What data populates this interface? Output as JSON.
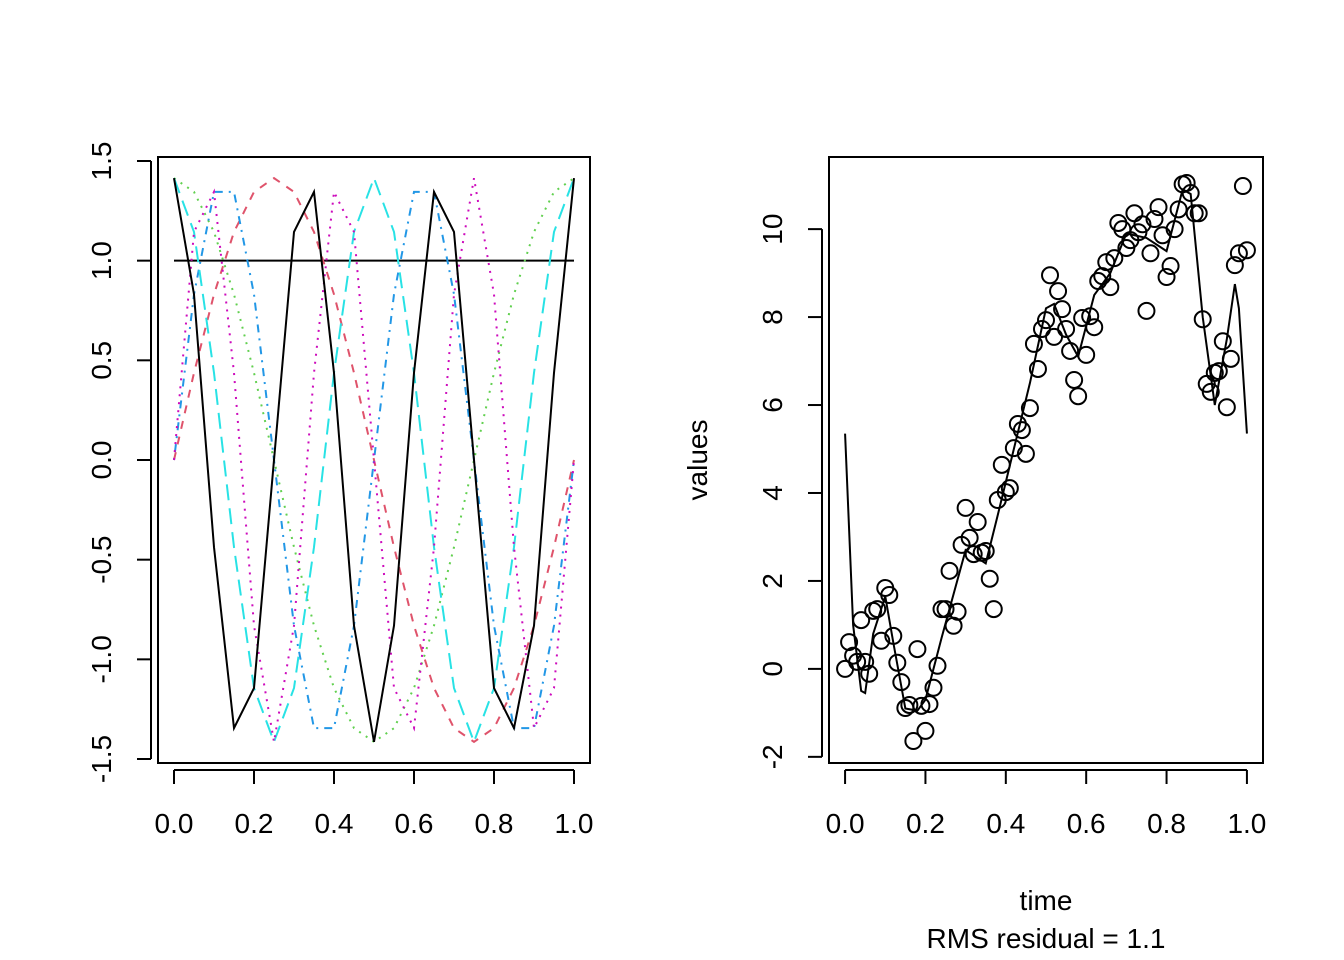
{
  "chart_data": [
    {
      "type": "line",
      "x": [
        0,
        0.05,
        0.1,
        0.15,
        0.2,
        0.25,
        0.3,
        0.35,
        0.4,
        0.45,
        0.5,
        0.55,
        0.6,
        0.65,
        0.7,
        0.75,
        0.8,
        0.85,
        0.9,
        0.95,
        1
      ],
      "series": [
        {
          "color": "#000000",
          "linestyle": "solid",
          "values": [
            1,
            1,
            1,
            1,
            1,
            1,
            1,
            1,
            1,
            1,
            1,
            1,
            1,
            1,
            1,
            1,
            1,
            1,
            1,
            1,
            1
          ]
        },
        {
          "color": "#DF536B",
          "linestyle": "dashed",
          "values": [
            0,
            0.437,
            0.831,
            1.144,
            1.345,
            1.414,
            1.345,
            1.144,
            0.831,
            0.437,
            0,
            -0.437,
            -0.831,
            -1.144,
            -1.345,
            -1.414,
            -1.345,
            -1.144,
            -0.831,
            -0.437,
            0
          ]
        },
        {
          "color": "#61D04F",
          "linestyle": "dotted",
          "values": [
            1.414,
            1.345,
            1.144,
            0.831,
            0.437,
            0,
            -0.437,
            -0.831,
            -1.144,
            -1.345,
            -1.414,
            -1.345,
            -1.144,
            -0.831,
            -0.437,
            0,
            0.437,
            0.831,
            1.144,
            1.345,
            1.414
          ]
        },
        {
          "color": "#2297E6",
          "linestyle": "dotdash",
          "values": [
            0,
            0.831,
            1.345,
            1.345,
            0.831,
            0,
            -0.831,
            -1.345,
            -1.345,
            -0.831,
            0,
            0.831,
            1.345,
            1.345,
            0.831,
            0,
            -0.831,
            -1.345,
            -1.345,
            -0.831,
            0
          ]
        },
        {
          "color": "#28E2E5",
          "linestyle": "longdash",
          "values": [
            1.414,
            1.144,
            0.437,
            -0.437,
            -1.144,
            -1.414,
            -1.144,
            -0.437,
            0.437,
            1.144,
            1.414,
            1.144,
            0.437,
            -0.437,
            -1.144,
            -1.414,
            -1.144,
            -0.437,
            0.437,
            1.144,
            1.414
          ]
        },
        {
          "color": "#CD0BBC",
          "linestyle": "dotted",
          "values": [
            0,
            1.144,
            1.345,
            0.437,
            -0.831,
            -1.414,
            -0.831,
            0.437,
            1.345,
            1.144,
            0,
            -1.144,
            -1.345,
            -0.437,
            0.831,
            1.414,
            0.831,
            -0.437,
            -1.345,
            -1.144,
            0
          ]
        },
        {
          "color": "#000000",
          "linestyle": "solid",
          "values": [
            1.414,
            0.831,
            -0.437,
            -1.345,
            -1.144,
            0,
            1.144,
            1.345,
            0.437,
            -0.831,
            -1.414,
            -0.831,
            0.437,
            1.345,
            1.144,
            0,
            -1.144,
            -1.345,
            -0.831,
            0.437,
            1.414
          ]
        }
      ],
      "xlim": [
        -0.04,
        1.04
      ],
      "ylim": [
        -1.52,
        1.52
      ],
      "xticks": [
        {
          "value": 0,
          "label": "0.0"
        },
        0.2,
        0.4,
        0.6,
        0.8,
        {
          "value": 1,
          "label": "1.0"
        }
      ],
      "yticks": [
        -1.5,
        {
          "value": -1,
          "label": "-1.0"
        },
        -0.5,
        {
          "value": 0,
          "label": "0.0"
        },
        0.5,
        {
          "value": 1,
          "label": "1.0"
        },
        1.5
      ]
    },
    {
      "type": "scatter",
      "xlabel": "time",
      "ylabel": "values",
      "subtitle": "RMS residual = 1.1",
      "color": "#000000",
      "x": [
        0,
        0.01,
        0.02,
        0.03,
        0.04,
        0.05,
        0.06,
        0.07,
        0.08,
        0.09,
        0.1,
        0.11,
        0.12,
        0.13,
        0.14,
        0.15,
        0.16,
        0.17,
        0.18,
        0.19,
        0.2,
        0.21,
        0.22,
        0.23,
        0.24,
        0.25,
        0.26,
        0.27,
        0.28,
        0.29,
        0.3,
        0.31,
        0.32,
        0.33,
        0.34,
        0.35,
        0.36,
        0.37,
        0.38,
        0.39,
        0.4,
        0.41,
        0.42,
        0.43,
        0.44,
        0.45,
        0.46,
        0.47,
        0.48,
        0.49,
        0.5,
        0.51,
        0.52,
        0.53,
        0.54,
        0.55,
        0.56,
        0.57,
        0.58,
        0.59,
        0.6,
        0.61,
        0.62,
        0.63,
        0.64,
        0.65,
        0.66,
        0.67,
        0.68,
        0.69,
        0.7,
        0.71,
        0.72,
        0.73,
        0.74,
        0.75,
        0.76,
        0.77,
        0.78,
        0.79,
        0.8,
        0.81,
        0.82,
        0.83,
        0.84,
        0.85,
        0.86,
        0.87,
        0.88,
        0.89,
        0.9,
        0.91,
        0.92,
        0.93,
        0.94,
        0.95,
        0.96,
        0.97,
        0.98,
        0.99,
        1
      ],
      "values": [
        0,
        0.61,
        0.3,
        0.16,
        1.11,
        0.16,
        -0.11,
        1.32,
        1.36,
        0.64,
        1.84,
        1.68,
        0.75,
        0.14,
        -0.3,
        -0.89,
        -0.82,
        -1.64,
        0.45,
        -0.84,
        -1.41,
        -0.8,
        -0.43,
        0.07,
        1.36,
        1.36,
        2.23,
        0.98,
        1.3,
        2.82,
        3.66,
        2.98,
        2.61,
        3.34,
        2.64,
        2.68,
        2.05,
        1.36,
        3.84,
        4.64,
        4.02,
        4.11,
        5.02,
        5.57,
        5.43,
        4.89,
        5.93,
        7.39,
        6.82,
        7.73,
        7.93,
        8.95,
        7.55,
        8.59,
        8.18,
        7.73,
        7.23,
        6.57,
        6.2,
        7.98,
        7.14,
        8.02,
        7.77,
        8.82,
        8.93,
        9.25,
        8.68,
        9.34,
        10.14,
        10,
        9.57,
        9.75,
        10.36,
        9.93,
        10.11,
        8.14,
        9.45,
        10.23,
        10.5,
        9.86,
        8.91,
        9.16,
        10,
        10.45,
        11.02,
        11.05,
        10.82,
        10.36,
        10.36,
        7.95,
        6.48,
        6.3,
        6.73,
        6.77,
        7.45,
        5.95,
        7.05,
        9.18,
        9.45,
        10.98,
        9.52
      ],
      "fit": {
        "x": [
          0,
          0.02,
          0.04,
          0.05,
          0.07,
          0.1,
          0.12,
          0.15,
          0.18,
          0.2,
          0.24,
          0.3,
          0.35,
          0.38,
          0.42,
          0.46,
          0.5,
          0.52,
          0.55,
          0.58,
          0.62,
          0.66,
          0.7,
          0.75,
          0.8,
          0.84,
          0.86,
          0.89,
          0.92,
          0.95,
          0.97,
          0.98,
          1
        ],
        "values": [
          5.35,
          1,
          -0.5,
          -0.55,
          0.8,
          1.65,
          0.6,
          -0.9,
          -0.95,
          -0.7,
          0.7,
          2.7,
          2.4,
          3.5,
          5,
          6.5,
          8.2,
          8.3,
          7.6,
          7.1,
          8.5,
          9,
          9.9,
          9.8,
          9.5,
          10.9,
          10.8,
          8,
          6,
          7.5,
          8.75,
          8.2,
          5.35
        ]
      },
      "xlim": [
        -0.04,
        1.04
      ],
      "ylim": [
        -2.14,
        11.64
      ],
      "xticks": [
        {
          "value": 0,
          "label": "0.0"
        },
        0.2,
        0.4,
        0.6,
        0.8,
        {
          "value": 1,
          "label": "1.0"
        }
      ],
      "yticks": [
        -2,
        0,
        2,
        4,
        6,
        8,
        10
      ]
    }
  ]
}
